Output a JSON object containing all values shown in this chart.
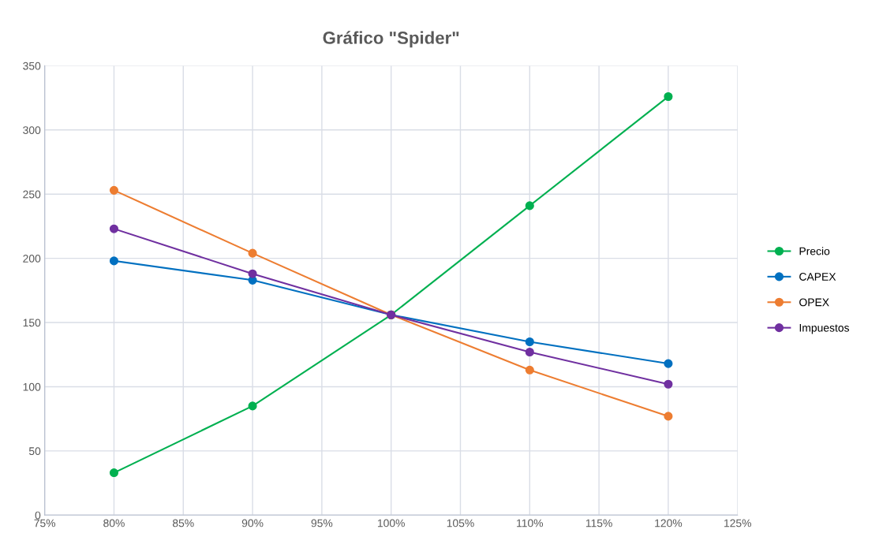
{
  "chart_data": {
    "type": "line",
    "title": "Gráfico \"Spider\"",
    "x": [
      80,
      90,
      100,
      110,
      120
    ],
    "series": [
      {
        "name": "Precio",
        "color": "#00b050",
        "values": [
          33,
          85,
          156,
          241,
          326
        ]
      },
      {
        "name": "CAPEX",
        "color": "#0070c0",
        "values": [
          198,
          183,
          156,
          135,
          118
        ]
      },
      {
        "name": "OPEX",
        "color": "#ed7d31",
        "values": [
          253,
          204,
          156,
          113,
          77
        ]
      },
      {
        "name": "Impuestos",
        "color": "#7030a0",
        "values": [
          223,
          188,
          156,
          127,
          102
        ]
      }
    ],
    "xlim": [
      75,
      125
    ],
    "xticks": [
      {
        "value": 75,
        "label": "75%"
      },
      {
        "value": 80,
        "label": "80%"
      },
      {
        "value": 85,
        "label": "85%"
      },
      {
        "value": 90,
        "label": "90%"
      },
      {
        "value": 95,
        "label": "95%"
      },
      {
        "value": 100,
        "label": "100%"
      },
      {
        "value": 105,
        "label": "105%"
      },
      {
        "value": 110,
        "label": "110%"
      },
      {
        "value": 115,
        "label": "115%"
      },
      {
        "value": 120,
        "label": "120%"
      },
      {
        "value": 125,
        "label": "125%"
      }
    ],
    "ylim": [
      0,
      350
    ],
    "yticks": [
      0,
      50,
      100,
      150,
      200,
      250,
      300,
      350
    ],
    "grid": true,
    "legend": "right",
    "marker": "circle",
    "line_style": "solid"
  }
}
